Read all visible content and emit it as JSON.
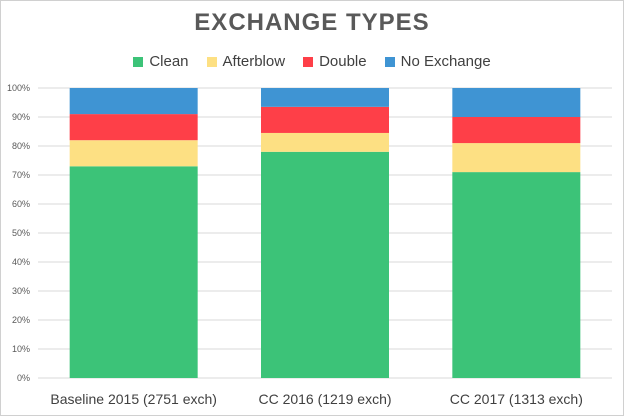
{
  "chart_data": {
    "type": "bar",
    "stacked": true,
    "percent_stacked": true,
    "title": "EXCHANGE TYPES",
    "categories": [
      "Baseline 2015 (2751 exch)",
      "CC 2016 (1219 exch)",
      "CC 2017 (1313 exch)"
    ],
    "series": [
      {
        "name": "Clean",
        "color": "#3cc378",
        "values": [
          73,
          78,
          71
        ]
      },
      {
        "name": "Afterblow",
        "color": "#fde083",
        "values": [
          9,
          6.5,
          10
        ]
      },
      {
        "name": "Double",
        "color": "#fe3f48",
        "values": [
          9,
          9,
          9
        ]
      },
      {
        "name": "No Exchange",
        "color": "#3f94d3",
        "values": [
          9,
          6.5,
          10
        ]
      }
    ],
    "y_ticks": [
      "0%",
      "10%",
      "20%",
      "30%",
      "40%",
      "50%",
      "60%",
      "70%",
      "80%",
      "90%",
      "100%"
    ],
    "ylim": [
      0,
      100
    ],
    "legend_position": "top",
    "grid": true,
    "gridline_color": "#d9d9d9"
  }
}
